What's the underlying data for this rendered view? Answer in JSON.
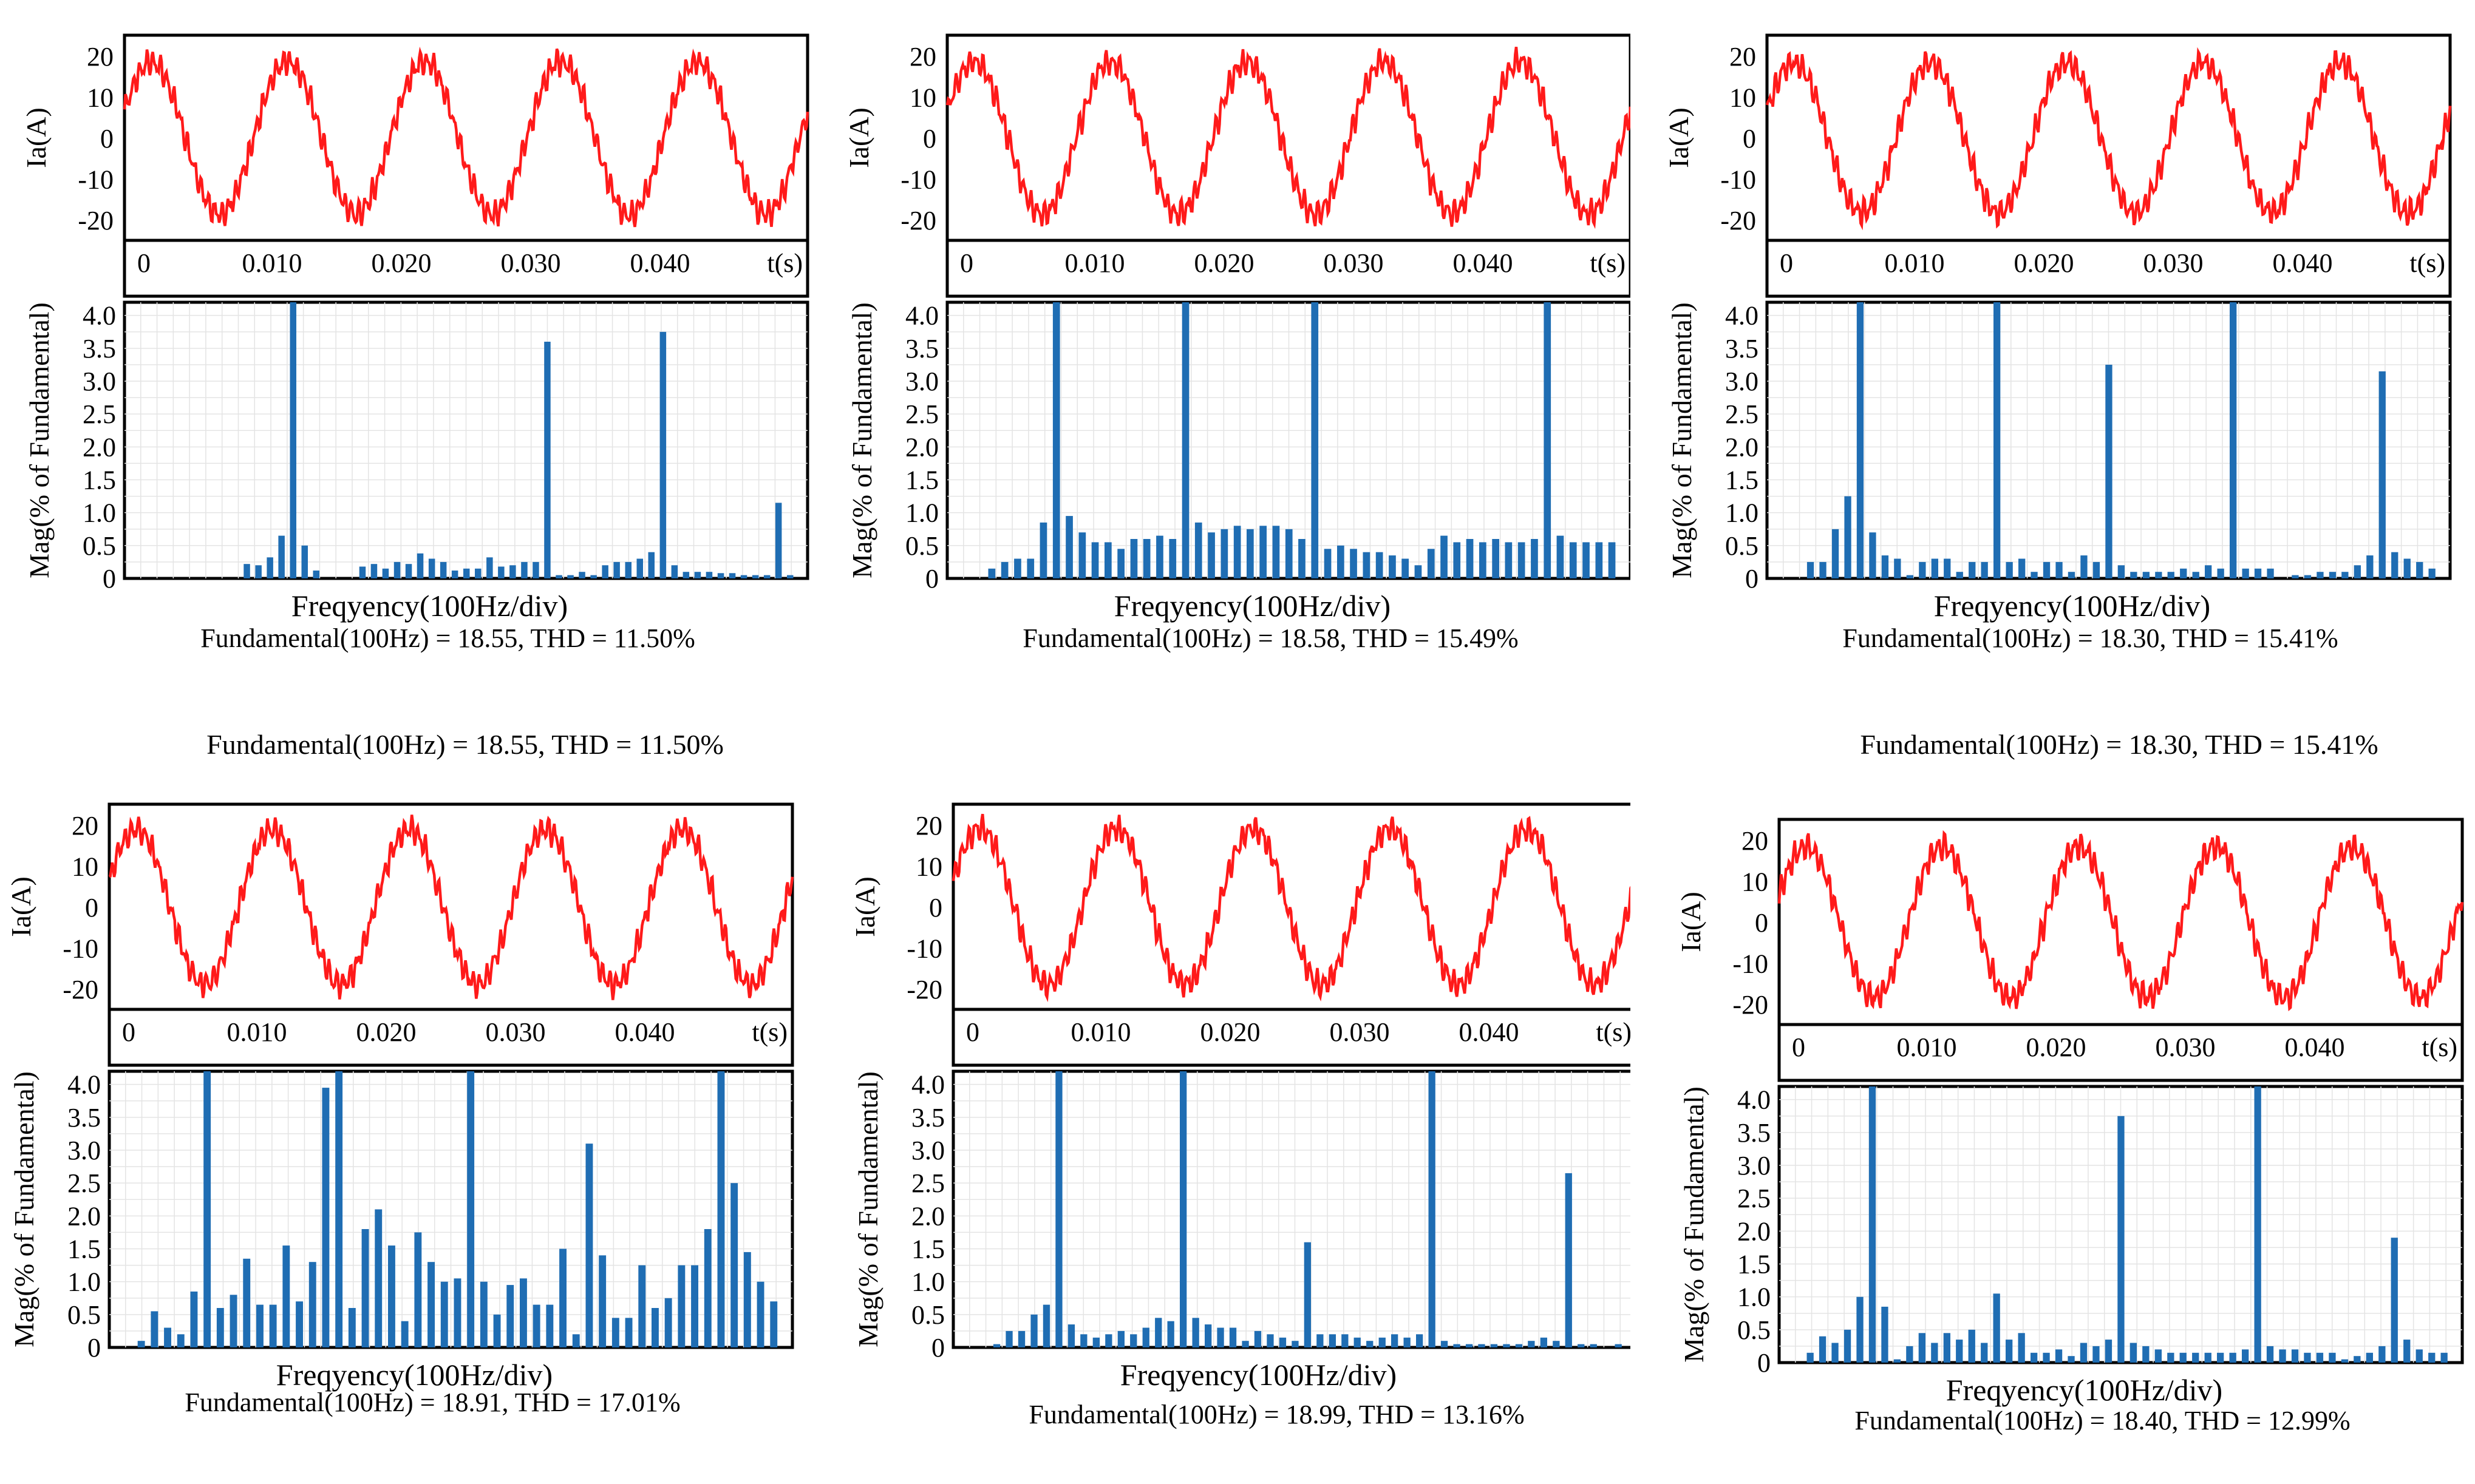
{
  "common": {
    "wave_ylabel": "Ia(A)",
    "wave_yticks": [
      "20",
      "10",
      "0",
      "-10",
      "-20"
    ],
    "time_ticks": [
      "0",
      "0.010",
      "0.020",
      "0.030",
      "0.040"
    ],
    "time_unit": "t(s)",
    "spec_ylabel": "Mag(% of Fundamental)",
    "spec_yticks": [
      "0",
      "0.5",
      "1.0",
      "1.5",
      "2.0",
      "2.5",
      "3.0",
      "3.5",
      "4.0"
    ],
    "spec_xlabel": "Freqyency(100Hz/div)",
    "colors": {
      "wave": "#ff1a1a",
      "bar": "#1f6db3",
      "grid": "#e4e4e4",
      "axis": "#000000"
    }
  },
  "chart_data": [
    {
      "type": "line+bar",
      "panel": "top-left",
      "waveform": {
        "ylabel": "Ia(A)",
        "ylim": [
          -25,
          25
        ],
        "xlim": [
          0,
          0.05
        ],
        "fundamental_hz": 100,
        "amplitude_a": 18.55
      },
      "spectrum": {
        "ylim": [
          0,
          4.2
        ],
        "values": [
          0,
          0,
          0,
          0,
          0,
          0,
          0,
          0,
          0,
          0.22,
          0.2,
          0.32,
          0.65,
          4.2,
          0.5,
          0.12,
          0,
          0,
          0,
          0.18,
          0.22,
          0.15,
          0.25,
          0.22,
          0.38,
          0.3,
          0.25,
          0.12,
          0.15,
          0.15,
          0.32,
          0.18,
          0.2,
          0.25,
          0.25,
          3.6,
          0.05,
          0.05,
          0.1,
          0.05,
          0.2,
          0.25,
          0.25,
          0.3,
          0.4,
          3.75,
          0.2,
          0.1,
          0.1,
          0.1,
          0.08,
          0.08,
          0.05,
          0.05,
          0.05,
          1.15,
          0.05
        ]
      },
      "caption": "Fundamental(100Hz) = 18.55, THD = 11.50%"
    },
    {
      "type": "line+bar",
      "panel": "top-middle",
      "waveform": {
        "ylabel": "Ia(A)",
        "ylim": [
          -25,
          25
        ],
        "xlim": [
          0,
          0.05
        ],
        "fundamental_hz": 100,
        "amplitude_a": 18.58
      },
      "spectrum": {
        "ylim": [
          0,
          4.2
        ],
        "values": [
          0,
          0,
          0.15,
          0.25,
          0.3,
          0.3,
          0.85,
          4.2,
          0.95,
          0.7,
          0.55,
          0.55,
          0.45,
          0.6,
          0.6,
          0.65,
          0.6,
          4.2,
          0.85,
          0.7,
          0.75,
          0.8,
          0.75,
          0.8,
          0.8,
          0.75,
          0.6,
          4.2,
          0.45,
          0.5,
          0.45,
          0.4,
          0.4,
          0.35,
          0.3,
          0.2,
          0.45,
          0.65,
          0.55,
          0.6,
          0.55,
          0.6,
          0.55,
          0.55,
          0.6,
          4.2,
          0.65,
          0.55,
          0.55,
          0.55,
          0.55
        ]
      },
      "caption": "Fundamental(100Hz) = 18.58, THD = 15.49%"
    },
    {
      "type": "line+bar",
      "panel": "top-right",
      "waveform": {
        "ylabel": "Ia(A)",
        "ylim": [
          -25,
          25
        ],
        "xlim": [
          0,
          0.05
        ],
        "fundamental_hz": 100,
        "amplitude_a": 18.3
      },
      "spectrum": {
        "ylim": [
          0,
          4.2
        ],
        "values": [
          0,
          0,
          0.25,
          0.25,
          0.75,
          1.25,
          4.2,
          0.7,
          0.35,
          0.3,
          0.05,
          0.25,
          0.3,
          0.3,
          0.1,
          0.25,
          0.25,
          4.2,
          0.25,
          0.3,
          0.1,
          0.25,
          0.25,
          0.1,
          0.35,
          0.25,
          3.25,
          0.2,
          0.1,
          0.1,
          0.1,
          0.1,
          0.15,
          0.1,
          0.2,
          0.15,
          4.2,
          0.15,
          0.15,
          0.15,
          0,
          0.05,
          0.05,
          0.1,
          0.1,
          0.1,
          0.2,
          0.35,
          3.15,
          0.4,
          0.3,
          0.25,
          0.15
        ]
      },
      "caption": "Fundamental(100Hz) = 18.30, THD = 15.41%"
    },
    {
      "type": "line+bar",
      "panel": "bottom-left",
      "waveform": {
        "ylabel": "Ia(A)",
        "ylim": [
          -25,
          25
        ],
        "xlim": [
          0,
          0.05
        ],
        "fundamental_hz": 100,
        "amplitude_a": 18.91
      },
      "spectrum": {
        "ylim": [
          0,
          4.2
        ],
        "values": [
          0,
          0.1,
          0.55,
          0.3,
          0.2,
          0.85,
          4.2,
          0.6,
          0.8,
          1.35,
          0.65,
          0.65,
          1.55,
          0.7,
          1.3,
          3.95,
          4.2,
          0.6,
          1.8,
          2.1,
          1.55,
          0.4,
          1.75,
          1.3,
          1.0,
          1.05,
          4.2,
          1.0,
          0.5,
          0.95,
          1.05,
          0.65,
          0.65,
          1.5,
          0.2,
          3.1,
          1.4,
          0.45,
          0.45,
          1.25,
          0.6,
          0.75,
          1.25,
          1.25,
          1.8,
          4.2,
          2.5,
          1.45,
          1.0,
          0.7
        ]
      },
      "caption": "Fundamental(100Hz) = 18.91, THD = 17.01%"
    },
    {
      "type": "line+bar",
      "panel": "bottom-middle",
      "waveform": {
        "ylabel": "Ia(A)",
        "ylim": [
          -25,
          25
        ],
        "xlim": [
          0,
          0.05
        ],
        "fundamental_hz": 100,
        "amplitude_a": 18.99
      },
      "spectrum": {
        "ylim": [
          0,
          4.2
        ],
        "values": [
          0,
          0,
          0.05,
          0.25,
          0.25,
          0.5,
          0.65,
          4.2,
          0.35,
          0.2,
          0.15,
          0.2,
          0.25,
          0.2,
          0.3,
          0.45,
          0.4,
          4.2,
          0.45,
          0.35,
          0.3,
          0.3,
          0.1,
          0.25,
          0.2,
          0.15,
          0.1,
          1.6,
          0.2,
          0.2,
          0.2,
          0.15,
          0.1,
          0.15,
          0.2,
          0.15,
          0.2,
          4.2,
          0.1,
          0.05,
          0.05,
          0.05,
          0.05,
          0.05,
          0.05,
          0.1,
          0.15,
          0.1,
          2.65,
          0.05,
          0.05,
          0,
          0.05
        ]
      },
      "caption": "Fundamental(100Hz) = 18.99, THD = 13.16%"
    },
    {
      "type": "line+bar",
      "panel": "bottom-right",
      "waveform": {
        "ylabel": "Ia(A)",
        "ylim": [
          -25,
          25
        ],
        "xlim": [
          0,
          0.05
        ],
        "fundamental_hz": 100,
        "amplitude_a": 18.4
      },
      "spectrum": {
        "ylim": [
          0,
          4.2
        ],
        "values": [
          0,
          0.15,
          0.4,
          0.3,
          0.5,
          1.0,
          4.2,
          0.85,
          0.05,
          0.25,
          0.45,
          0.3,
          0.45,
          0.35,
          0.5,
          0.3,
          1.05,
          0.35,
          0.45,
          0.15,
          0.15,
          0.2,
          0.1,
          0.3,
          0.25,
          0.35,
          3.75,
          0.3,
          0.25,
          0.2,
          0.15,
          0.15,
          0.15,
          0.15,
          0.15,
          0.15,
          0.2,
          4.2,
          0.25,
          0.2,
          0.2,
          0.15,
          0.15,
          0.15,
          0.05,
          0.1,
          0.15,
          0.25,
          1.9,
          0.35,
          0.2,
          0.15,
          0.15
        ]
      },
      "caption": "Fundamental(100Hz) = 18.40, THD = 12.99%"
    }
  ],
  "stray_captions": [
    "Fundamental(100Hz) = 18.55, THD = 11.50%",
    "Fundamental(100Hz) = 18.30, THD = 15.41%"
  ]
}
